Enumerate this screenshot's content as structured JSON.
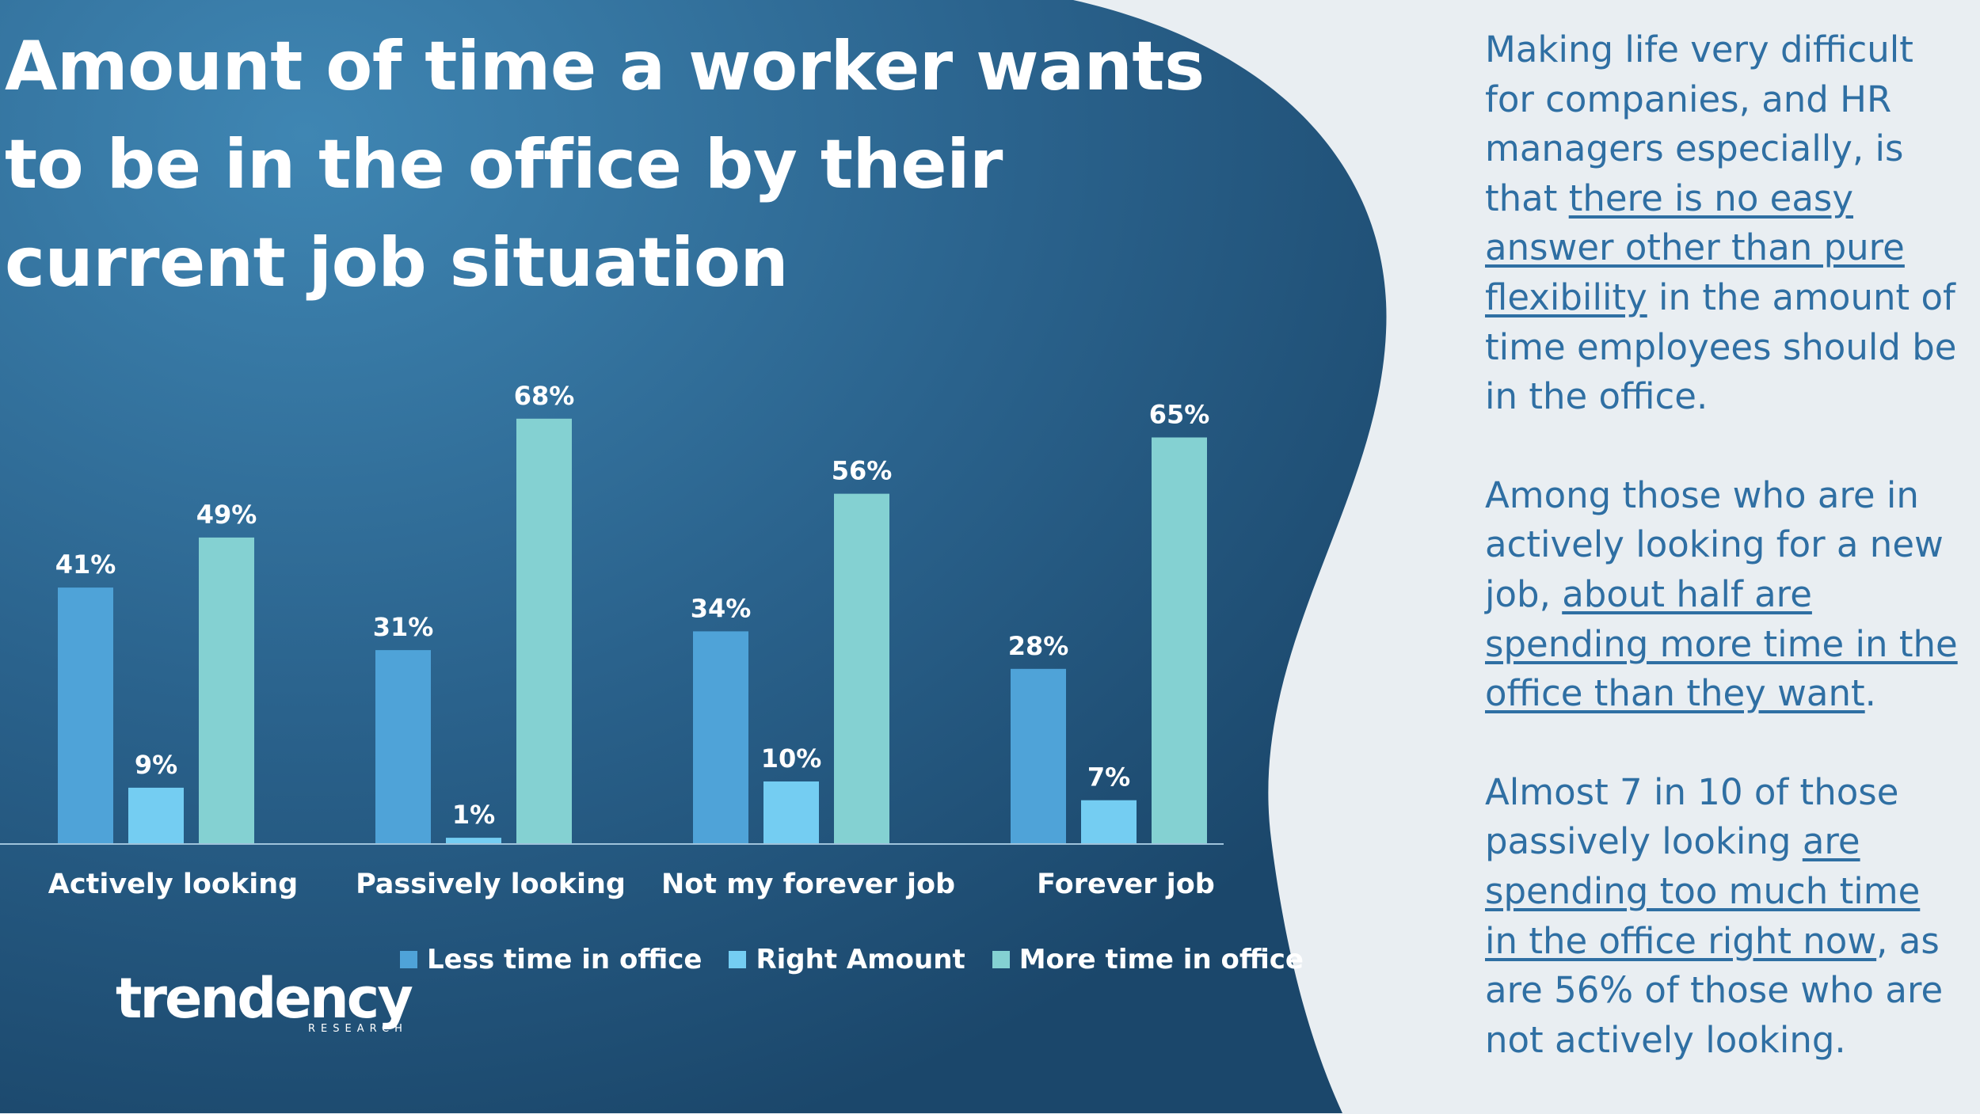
{
  "colors": {
    "panel_dark": "#1c4a6e",
    "panel_light": "#3a7ca8",
    "page_background": "#e9eef2",
    "sidebar_text": "#2f6fa3"
  },
  "chart_data": {
    "type": "bar",
    "title": "Amount of time a worker wants to be in the office by their current job situation",
    "categories": [
      "Actively looking",
      "Passively looking",
      "Not my forever job",
      "Forever job"
    ],
    "series": [
      {
        "name": "Less time in office",
        "color": "#4fa3d8",
        "values": [
          41,
          31,
          34,
          28
        ]
      },
      {
        "name": "Right Amount",
        "color": "#74cdf2",
        "values": [
          9,
          1,
          10,
          7
        ]
      },
      {
        "name": "More time in office",
        "color": "#84d1d2",
        "values": [
          49,
          68,
          56,
          65
        ]
      }
    ],
    "value_suffix": "%",
    "ylim": [
      0,
      70
    ],
    "grid": false,
    "legend_position": "bottom"
  },
  "logo": {
    "word": "trendency",
    "sub": "RESEARCH"
  },
  "sidebar": {
    "p1": {
      "a": "Making life very difficult for companies, and HR managers especially, is that ",
      "b": "there is no easy answer other than pure flexibility",
      "c": " in the amount of time employees should be in the office."
    },
    "p2": {
      "a": "Among those who are in actively looking for a new job, ",
      "b": "about half are spending more time in the office than they want",
      "c": "."
    },
    "p3": {
      "a": "Almost 7 in 10 of those passively looking ",
      "b": "are spending too much time in the office right now",
      "c": ", as are 56% of those who are not actively looking."
    }
  }
}
